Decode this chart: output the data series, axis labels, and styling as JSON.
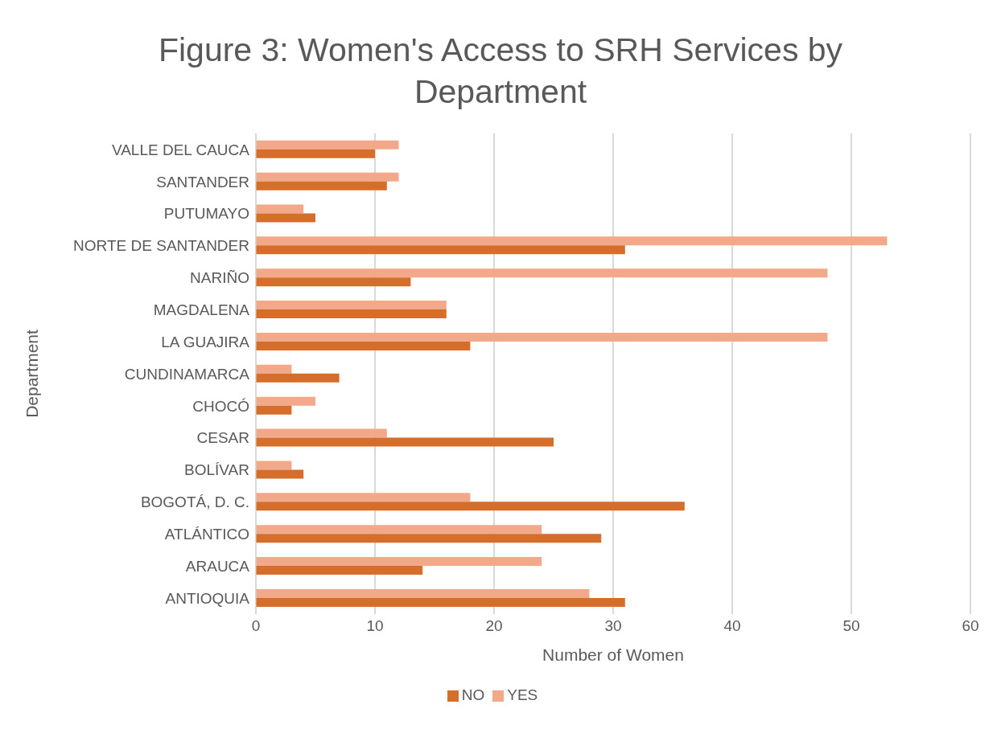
{
  "chart_data": {
    "type": "bar",
    "orientation": "horizontal",
    "title": "Figure 3: Women's Access to SRH Services by Department",
    "xlabel": "Number of Women",
    "ylabel": "Department",
    "categories": [
      "VALLE DEL CAUCA",
      "SANTANDER",
      "PUTUMAYO",
      "NORTE DE SANTANDER",
      "NARIÑO",
      "MAGDALENA",
      "LA GUAJIRA",
      "CUNDINAMARCA",
      "CHOCÓ",
      "CESAR",
      "BOLÍVAR",
      "BOGOTÁ, D. C.",
      "ATLÁNTICO",
      "ARAUCA",
      "ANTIOQUIA"
    ],
    "series": [
      {
        "name": "YES",
        "color": "#f1a98a",
        "values": [
          12,
          12,
          4,
          53,
          48,
          16,
          48,
          3,
          5,
          11,
          3,
          18,
          24,
          24,
          28
        ]
      },
      {
        "name": "NO",
        "color": "#d46e2a",
        "values": [
          10,
          11,
          5,
          31,
          13,
          16,
          18,
          7,
          3,
          25,
          4,
          36,
          29,
          14,
          31
        ]
      }
    ],
    "xlim": [
      0,
      60
    ],
    "xticks": [
      0,
      10,
      20,
      30,
      40,
      50,
      60
    ],
    "grid": "x",
    "legend": "bottom"
  }
}
